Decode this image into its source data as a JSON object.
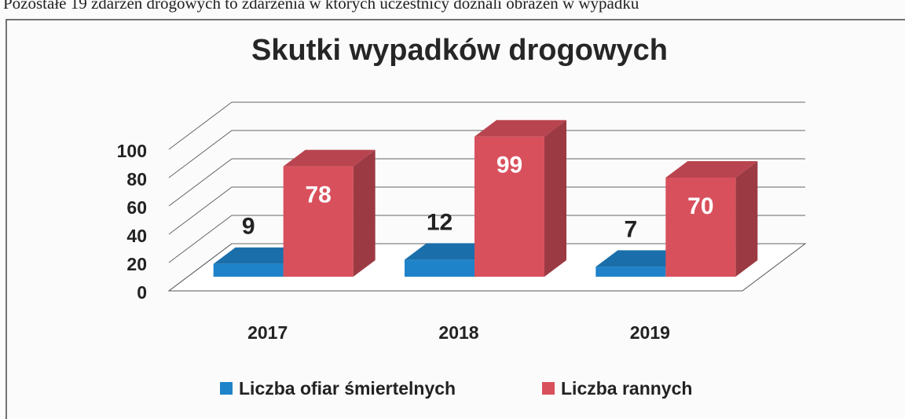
{
  "header_text": "Pozostałe 19 zdarzeń drogowych to zdarzenia w których uczestnicy doznali obrażeń w wypadku",
  "chart_data": {
    "type": "bar3d",
    "title": "Skutki wypadków drogowych",
    "categories": [
      "2017",
      "2018",
      "2019"
    ],
    "series": [
      {
        "name": "Liczba ofiar śmiertelnych",
        "color": "#1f83c9",
        "values": [
          9,
          12,
          7
        ]
      },
      {
        "name": "Liczba rannych",
        "color": "#d9505d",
        "values": [
          78,
          99,
          70
        ]
      }
    ],
    "ylim": [
      0,
      100
    ],
    "yticks": [
      0,
      20,
      40,
      60,
      80,
      100
    ],
    "grid": true,
    "legend": "bottom"
  }
}
